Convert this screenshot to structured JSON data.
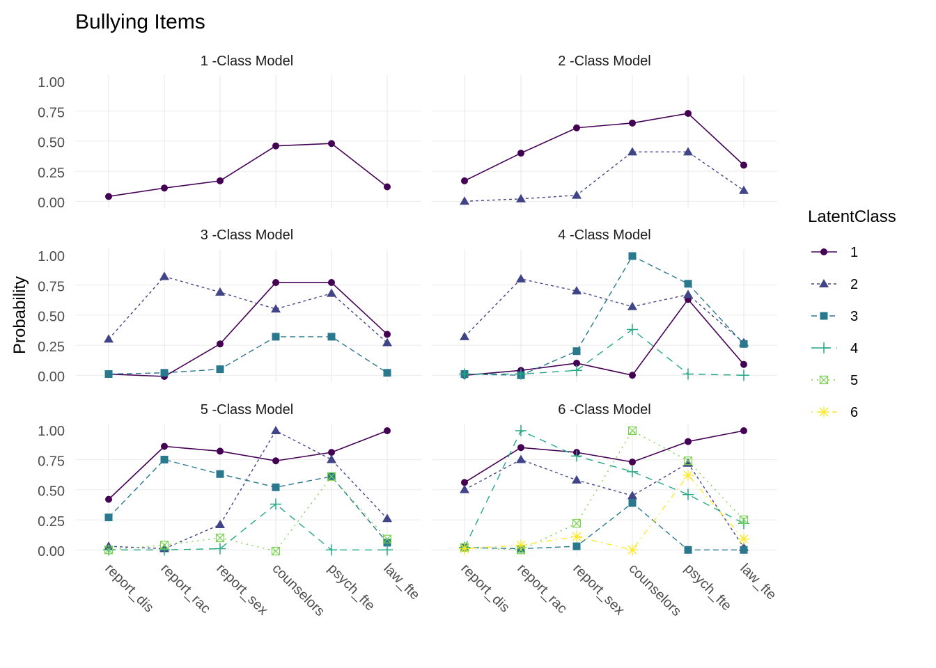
{
  "chart_data": {
    "type": "line",
    "title": "Bullying Items",
    "xlabel": "",
    "ylabel": "Probability",
    "ylim": [
      0,
      1
    ],
    "yticks": [
      "0.00",
      "0.25",
      "0.50",
      "0.75",
      "1.00"
    ],
    "categories": [
      "report_dis",
      "report_rac",
      "report_sex",
      "counselors",
      "psych_fte",
      "law_fte"
    ],
    "grid": true,
    "legend": {
      "title": "LatentClass",
      "position": "right",
      "entries": [
        {
          "label": "1",
          "color": "#440154",
          "shape": "circle",
          "dash": "solid"
        },
        {
          "label": "2",
          "color": "#414487",
          "shape": "triangle",
          "dash": "dotted-dash"
        },
        {
          "label": "3",
          "color": "#2A788E",
          "shape": "square",
          "dash": "dashed"
        },
        {
          "label": "4",
          "color": "#22A884",
          "shape": "plus",
          "dash": "longdash"
        },
        {
          "label": "5",
          "color": "#7AD151",
          "shape": "square-cross",
          "dash": "dotted"
        },
        {
          "label": "6",
          "color": "#FDE725",
          "shape": "asterisk",
          "dash": "dotdash"
        }
      ]
    },
    "panels": [
      {
        "title": "1 -Class Model",
        "series": [
          {
            "name": "1",
            "values": [
              0.05,
              0.12,
              0.18,
              0.47,
              0.49,
              0.13
            ]
          }
        ]
      },
      {
        "title": "2 -Class Model",
        "series": [
          {
            "name": "1",
            "values": [
              0.18,
              0.41,
              0.62,
              0.66,
              0.74,
              0.31
            ]
          },
          {
            "name": "2",
            "values": [
              0.01,
              0.03,
              0.06,
              0.42,
              0.42,
              0.1
            ]
          }
        ]
      },
      {
        "title": "3 -Class Model",
        "series": [
          {
            "name": "1",
            "values": [
              0.02,
              0.0,
              0.27,
              0.78,
              0.78,
              0.35
            ]
          },
          {
            "name": "2",
            "values": [
              0.31,
              0.83,
              0.7,
              0.56,
              0.69,
              0.28
            ]
          },
          {
            "name": "3",
            "values": [
              0.02,
              0.03,
              0.06,
              0.33,
              0.33,
              0.03
            ]
          }
        ]
      },
      {
        "title": "4 -Class Model",
        "series": [
          {
            "name": "1",
            "values": [
              0.01,
              0.05,
              0.11,
              0.01,
              0.64,
              0.1
            ]
          },
          {
            "name": "2",
            "values": [
              0.33,
              0.81,
              0.71,
              0.58,
              0.68,
              0.28
            ]
          },
          {
            "name": "3",
            "values": [
              0.02,
              0.01,
              0.21,
              1.0,
              0.77,
              0.27
            ]
          },
          {
            "name": "4",
            "values": [
              0.02,
              0.02,
              0.05,
              0.39,
              0.02,
              0.01
            ]
          }
        ]
      },
      {
        "title": "5 -Class Model",
        "series": [
          {
            "name": "1",
            "values": [
              0.43,
              0.87,
              0.83,
              0.75,
              0.82,
              1.0
            ]
          },
          {
            "name": "2",
            "values": [
              0.04,
              0.02,
              0.22,
              1.0,
              0.76,
              0.27
            ]
          },
          {
            "name": "3",
            "values": [
              0.28,
              0.76,
              0.64,
              0.53,
              0.62,
              0.07
            ]
          },
          {
            "name": "4",
            "values": [
              0.01,
              0.01,
              0.02,
              0.39,
              0.01,
              0.01
            ]
          },
          {
            "name": "5",
            "values": [
              0.01,
              0.05,
              0.11,
              0.0,
              0.62,
              0.1
            ]
          }
        ]
      },
      {
        "title": "6 -Class Model",
        "series": [
          {
            "name": "1",
            "values": [
              0.57,
              0.86,
              0.82,
              0.74,
              0.91,
              1.0
            ]
          },
          {
            "name": "2",
            "values": [
              0.51,
              0.76,
              0.59,
              0.46,
              0.73,
              0.03
            ]
          },
          {
            "name": "3",
            "values": [
              0.03,
              0.02,
              0.04,
              0.4,
              0.01,
              0.01
            ]
          },
          {
            "name": "4",
            "values": [
              0.03,
              1.0,
              0.79,
              0.66,
              0.47,
              0.23
            ]
          },
          {
            "name": "5",
            "values": [
              0.03,
              0.01,
              0.23,
              1.0,
              0.75,
              0.26
            ]
          },
          {
            "name": "6",
            "values": [
              0.02,
              0.05,
              0.12,
              0.01,
              0.63,
              0.1
            ]
          }
        ]
      }
    ]
  }
}
